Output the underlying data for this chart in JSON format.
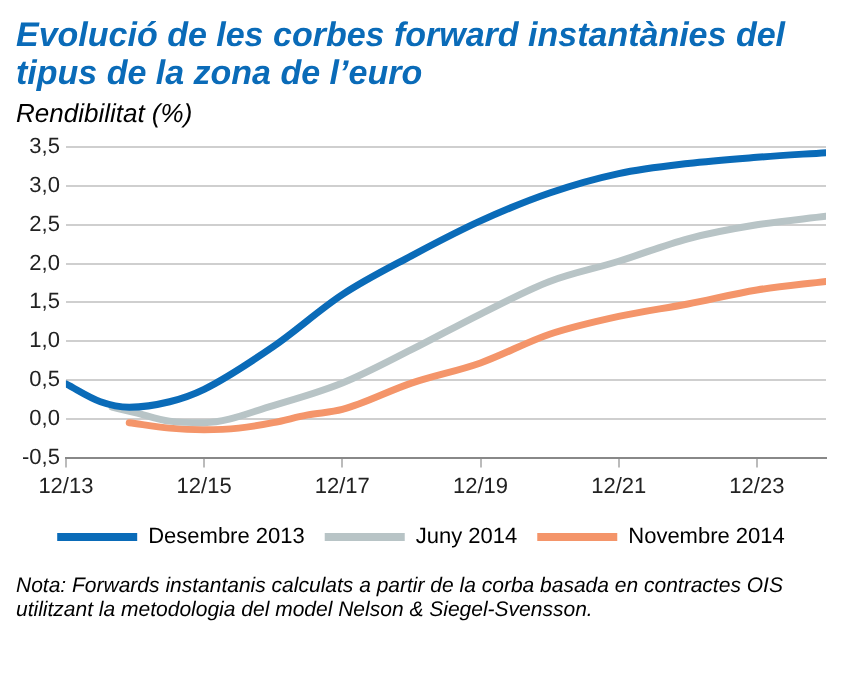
{
  "chart_data": {
    "type": "line",
    "title": "Evolució de les corbes forward instantànies del tipus de la zona de l’euro",
    "ylabel": "Rendibilitat (%)",
    "xlim": [
      "2013-12",
      "2024-12"
    ],
    "xticks": [
      {
        "value": "2013-12",
        "label": "12/13"
      },
      {
        "value": "2015-12",
        "label": "12/15"
      },
      {
        "value": "2017-12",
        "label": "12/17"
      },
      {
        "value": "2019-12",
        "label": "12/19"
      },
      {
        "value": "2021-12",
        "label": "12/21"
      },
      {
        "value": "2023-12",
        "label": "12/23"
      }
    ],
    "ylim": [
      -0.5,
      3.5
    ],
    "yticks": [
      {
        "value": -0.5,
        "label": "-0,5"
      },
      {
        "value": 0,
        "label": "0,0"
      },
      {
        "value": 0.5,
        "label": "0,5"
      },
      {
        "value": 1,
        "label": "1,0"
      },
      {
        "value": 1.5,
        "label": "1,5"
      },
      {
        "value": 2,
        "label": "2,0"
      },
      {
        "value": 2.5,
        "label": "2,5"
      },
      {
        "value": 3,
        "label": "3,0"
      },
      {
        "value": 3.5,
        "label": "3,5"
      }
    ],
    "grid": "y",
    "legend": "bottom",
    "marker": "none",
    "line_style": "solid",
    "series": [
      {
        "name": "Desembre 2013",
        "color": "#0a6bb8",
        "x": [
          "2013-12",
          "2014-06",
          "2014-11",
          "2015-06",
          "2015-12",
          "2016-12",
          "2017-12",
          "2018-12",
          "2019-12",
          "2020-12",
          "2021-12",
          "2022-12",
          "2023-12",
          "2024-12"
        ],
        "values": [
          0.45,
          0.22,
          0.15,
          0.22,
          0.38,
          0.93,
          1.6,
          2.1,
          2.55,
          2.91,
          3.16,
          3.29,
          3.37,
          3.43
        ]
      },
      {
        "name": "Juny 2014",
        "color": "#b8c4c6",
        "x": [
          "2014-08",
          "2014-12",
          "2015-06",
          "2015-12",
          "2016-12",
          "2017-12",
          "2018-12",
          "2019-12",
          "2020-12",
          "2021-12",
          "2022-12",
          "2023-12",
          "2024-12"
        ],
        "values": [
          0.15,
          0.08,
          -0.03,
          -0.05,
          0.17,
          0.46,
          0.89,
          1.35,
          1.77,
          2.03,
          2.32,
          2.5,
          2.61
        ]
      },
      {
        "name": "Novembre 2014",
        "color": "#f4956a",
        "x": [
          "2014-11",
          "2015-06",
          "2015-12",
          "2016-06",
          "2016-12",
          "2017-06",
          "2017-12",
          "2018-12",
          "2019-12",
          "2020-12",
          "2021-12",
          "2022-12",
          "2023-12",
          "2024-12"
        ],
        "values": [
          -0.05,
          -0.12,
          -0.14,
          -0.12,
          -0.05,
          0.05,
          0.12,
          0.46,
          0.72,
          1.09,
          1.32,
          1.48,
          1.66,
          1.77
        ]
      }
    ],
    "annotations": [
      "Nota: Forwards instantanis calculats a partir de la corba basada en contractes OIS utilitzant la metodologia del model Nelson & Siegel-Svensson."
    ]
  }
}
